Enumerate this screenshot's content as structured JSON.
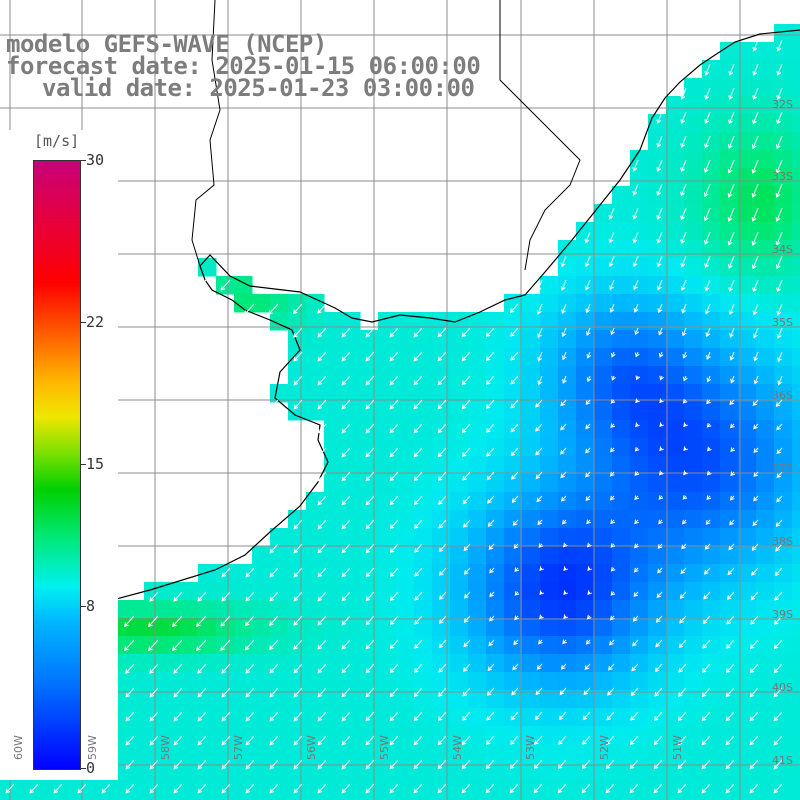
{
  "title": {
    "line1": "modelo GEFS-WAVE (NCEP)",
    "line2": "forecast date: 2025-01-15 06:00:00",
    "line3": "valid date: 2025-01-23 03:00:00"
  },
  "colorbar": {
    "unit": "[m/s]",
    "ticks": [
      {
        "label": "30",
        "value": 30
      },
      {
        "label": "22",
        "value": 22
      },
      {
        "label": "15",
        "value": 15
      },
      {
        "label": "8",
        "value": 8
      },
      {
        "label": "0",
        "value": 0
      }
    ]
  },
  "lat_labels": [
    "32S",
    "33S",
    "34S",
    "35S",
    "36S",
    "37S",
    "38S",
    "39S",
    "40S",
    "41S"
  ],
  "lon_labels": [
    "60W",
    "59W",
    "58W",
    "57W",
    "56W",
    "55W",
    "54W",
    "53W",
    "52W",
    "51W"
  ],
  "colors": {
    "land": "#ffffff",
    "grid": "#8c8c8c",
    "coast": "#000000",
    "arrow": "#ffffff",
    "title": "#7d7d7d"
  }
}
